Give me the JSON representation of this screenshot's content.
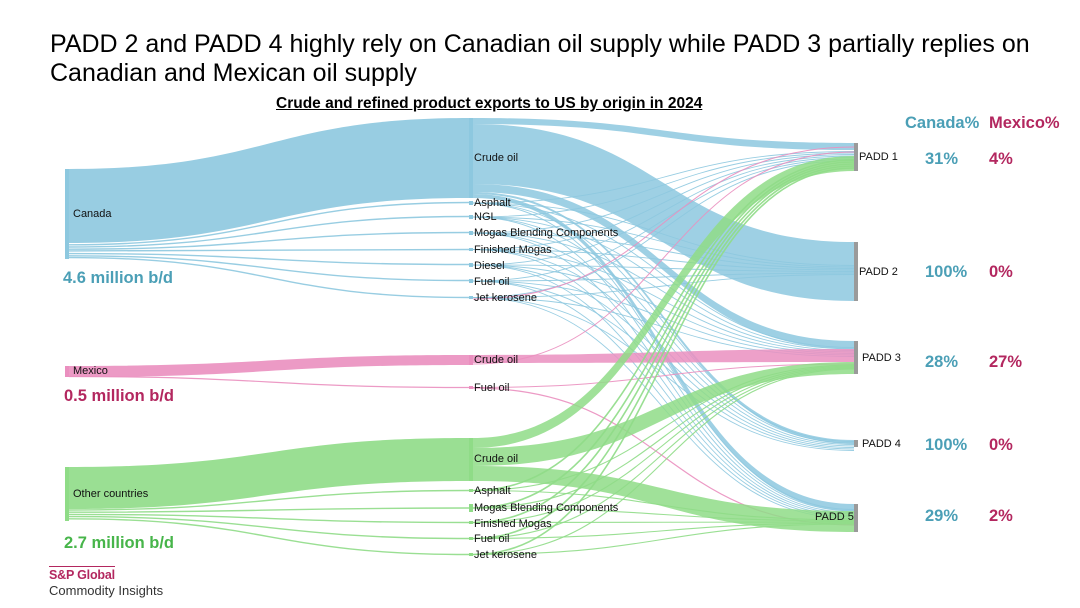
{
  "title": "PADD 2 and PADD 4 highly rely on Canadian oil supply while PADD 3 partially replies on Canadian and Mexican oil supply",
  "subtitle": "Crude and refined product exports to US by origin in 2024",
  "origins": [
    {
      "id": "canada",
      "label": "Canada",
      "volume": "4.6 million b/d",
      "color": "#8dc8df"
    },
    {
      "id": "mexico",
      "label": "Mexico",
      "volume": "0.5 million b/d",
      "color": "#ea8fbf"
    },
    {
      "id": "other",
      "label": "Other countries",
      "volume": "2.7 million b/d",
      "color": "#8fdc87"
    }
  ],
  "products": {
    "canada": [
      "Crude oil",
      "Asphalt",
      "NGL",
      "Mogas Blending Components",
      "Finished Mogas",
      "Diesel",
      "Fuel oil",
      "Jet kerosene"
    ],
    "mexico": [
      "Crude oil",
      "Fuel oil"
    ],
    "other": [
      "Crude oil",
      "Asphalt",
      "Mogas Blending Components",
      "Finished Mogas",
      "Fuel oil",
      "Jet kerosene"
    ]
  },
  "share_headers": {
    "canada": "Canada%",
    "mexico": "Mexico%"
  },
  "destinations": [
    {
      "id": "padd1",
      "label": "PADD 1",
      "canada_pct": "31%",
      "mexico_pct": "4%"
    },
    {
      "id": "padd2",
      "label": "PADD 2",
      "canada_pct": "100%",
      "mexico_pct": "0%"
    },
    {
      "id": "padd3",
      "label": "PADD 3",
      "canada_pct": "28%",
      "mexico_pct": "27%"
    },
    {
      "id": "padd4",
      "label": "PADD 4",
      "canada_pct": "100%",
      "mexico_pct": "0%"
    },
    {
      "id": "padd5",
      "label": "PADD 5",
      "canada_pct": "29%",
      "mexico_pct": "2%"
    }
  ],
  "colors": {
    "canada": "#4b9fb6",
    "mexico": "#b3275f",
    "other": "#47b54a",
    "node": "#9a9a9a"
  },
  "branding": {
    "name": "S&P Global",
    "sub": "Commodity Insights"
  }
}
